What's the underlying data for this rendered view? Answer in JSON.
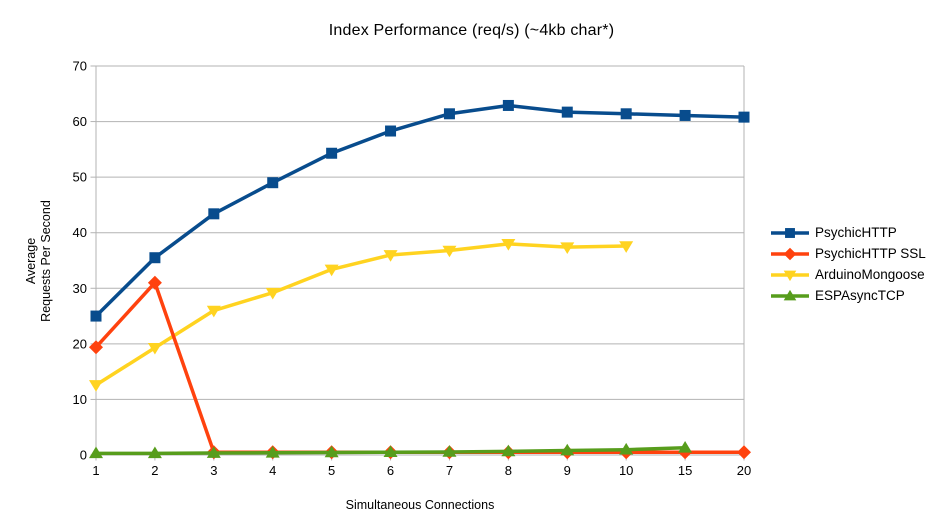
{
  "title": "Index Performance (req/s) (~4kb char*)",
  "x_axis": {
    "title": "Simultaneous Connections"
  },
  "y_axis": {
    "title_line1": "Average",
    "title_line2": "Requests Per Second"
  },
  "colors": {
    "grid": "#b3b3b3",
    "text": "#000000",
    "background": "#ffffff"
  },
  "chart_data": {
    "type": "line",
    "title": "Index Performance (req/s) (~4kb char*)",
    "xlabel": "Simultaneous Connections",
    "ylabel": "Average Requests Per Second",
    "categories": [
      1,
      2,
      3,
      4,
      5,
      6,
      7,
      8,
      9,
      10,
      15,
      20
    ],
    "y_ticks": [
      0,
      10,
      20,
      30,
      40,
      50,
      60,
      70
    ],
    "ylim": [
      0,
      70
    ],
    "grid": "horizontal",
    "legend_position": "right",
    "draw_order": [
      0,
      2,
      1,
      3
    ],
    "series": [
      {
        "name": "PsychicHTTP",
        "color": "#084c8d",
        "marker": "square",
        "values": [
          25.0,
          35.5,
          43.4,
          49.0,
          54.3,
          58.3,
          61.4,
          62.9,
          61.7,
          61.4,
          61.1,
          60.8
        ]
      },
      {
        "name": "PsychicHTTP SSL",
        "color": "#ff420e",
        "marker": "diamond",
        "values": [
          19.4,
          31.0,
          0.5,
          0.5,
          0.5,
          0.5,
          0.5,
          0.5,
          0.5,
          0.5,
          0.5,
          0.5
        ]
      },
      {
        "name": "ArduinoMongoose",
        "color": "#ffd320",
        "marker": "triangle-down",
        "values": [
          12.6,
          19.3,
          26.0,
          29.2,
          33.4,
          36.0,
          36.8,
          38.0,
          37.4,
          37.6,
          null,
          null
        ]
      },
      {
        "name": "ESPAsyncTCP",
        "color": "#579d1c",
        "marker": "triangle-up",
        "values": [
          0.3,
          0.3,
          0.35,
          0.4,
          0.45,
          0.5,
          0.55,
          0.65,
          0.8,
          0.95,
          1.3,
          null
        ]
      }
    ]
  }
}
